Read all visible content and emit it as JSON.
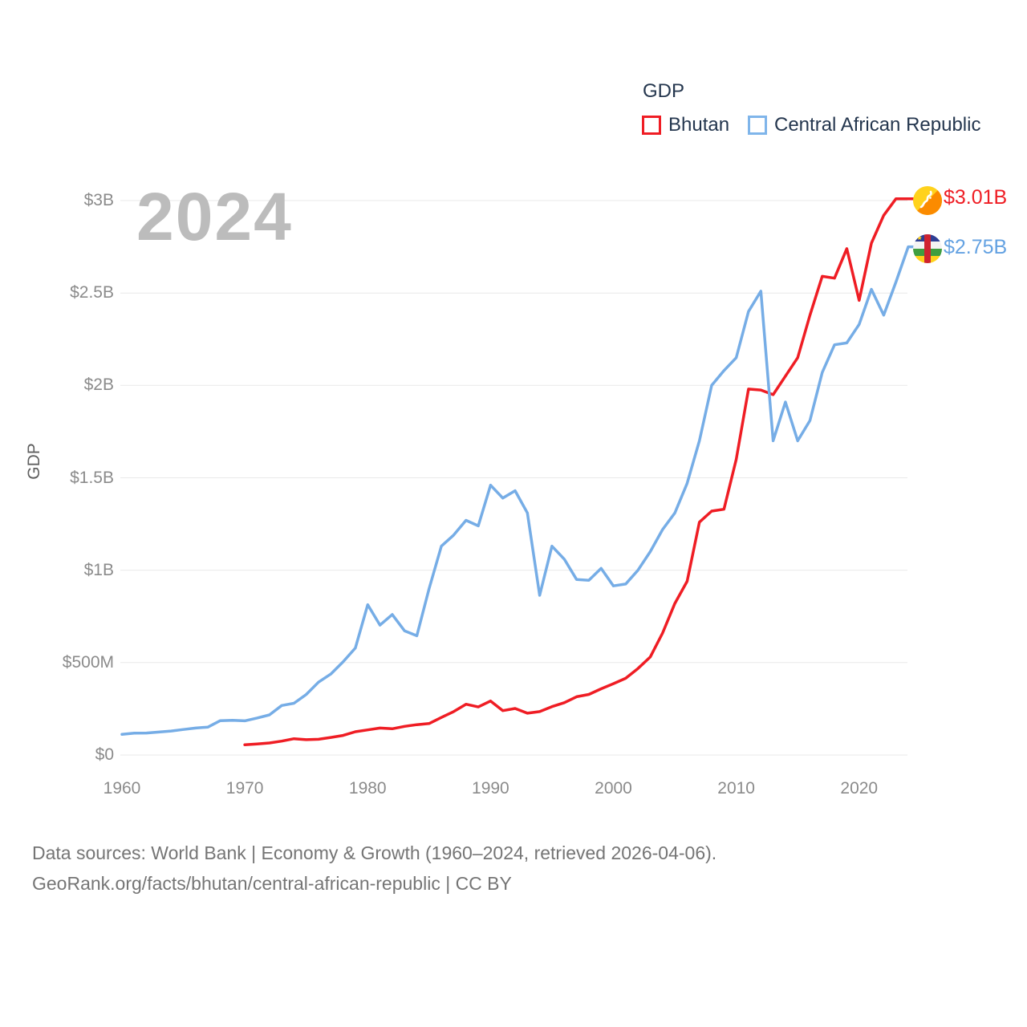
{
  "legend": {
    "title": "GDP",
    "series": [
      {
        "label": "Bhutan",
        "color": "#ef1d24"
      },
      {
        "label": "Central African Republic",
        "color": "#76ade6"
      }
    ]
  },
  "watermark": "2024",
  "y_axis": {
    "label": "GDP",
    "ticks": [
      "$0",
      "$500M",
      "$1B",
      "$1.5B",
      "$2B",
      "$2.5B",
      "$3B"
    ]
  },
  "x_axis": {
    "ticks": [
      "1960",
      "1970",
      "1980",
      "1990",
      "2000",
      "2010",
      "2020"
    ]
  },
  "end_labels": [
    {
      "series": "Bhutan",
      "value": "$3.01B"
    },
    {
      "series": "Central African Republic",
      "value": "$2.75B"
    }
  ],
  "footer": {
    "line1": "Data sources: World Bank | Economy & Growth (1960–2024, retrieved 2026-04-06).",
    "line2": "GeoRank.org/facts/bhutan/central-african-republic | CC BY"
  },
  "chart_data": {
    "type": "line",
    "title": "GDP",
    "ylabel": "GDP",
    "xlabel": "",
    "grid": "horizontal",
    "legend_position": "top-right",
    "x_range": [
      1960,
      2024
    ],
    "y_range_millions": [
      0,
      3100
    ],
    "y_ticks_millions": [
      0,
      500,
      1000,
      1500,
      2000,
      2500,
      3000
    ],
    "x_ticks": [
      1960,
      1970,
      1980,
      1990,
      2000,
      2010,
      2020
    ],
    "series": [
      {
        "name": "Bhutan",
        "color": "#ef1d24",
        "end_label": "$3.01B",
        "final_value": "$3.01B",
        "x_start": 1970,
        "x": [
          1970,
          1971,
          1972,
          1973,
          1974,
          1975,
          1976,
          1977,
          1978,
          1979,
          1980,
          1981,
          1982,
          1983,
          1984,
          1985,
          1986,
          1987,
          1988,
          1989,
          1990,
          1991,
          1992,
          1993,
          1994,
          1995,
          1996,
          1997,
          1998,
          1999,
          2000,
          2001,
          2002,
          2003,
          2004,
          2005,
          2006,
          2007,
          2008,
          2009,
          2010,
          2011,
          2012,
          2013,
          2014,
          2015,
          2016,
          2017,
          2018,
          2019,
          2020,
          2021,
          2022,
          2023,
          2024
        ],
        "values_millions": [
          55,
          60,
          65,
          75,
          88,
          83,
          85,
          95,
          106,
          126,
          136,
          146,
          142,
          155,
          164,
          170,
          203,
          235,
          275,
          260,
          292,
          240,
          252,
          226,
          235,
          262,
          283,
          315,
          328,
          358,
          386,
          415,
          468,
          530,
          660,
          820,
          940,
          1260,
          1320,
          1330,
          1600,
          1980,
          1975,
          1950,
          2050,
          2150,
          2380,
          2590,
          2580,
          2740,
          2460,
          2770,
          2920,
          3010,
          3010
        ]
      },
      {
        "name": "Central African Republic",
        "color": "#76ade6",
        "end_label": "$2.75B",
        "final_value": "$2.75B",
        "x_start": 1960,
        "x": [
          1960,
          1961,
          1962,
          1963,
          1964,
          1965,
          1966,
          1967,
          1968,
          1969,
          1970,
          1971,
          1972,
          1973,
          1974,
          1975,
          1976,
          1977,
          1978,
          1979,
          1980,
          1981,
          1982,
          1983,
          1984,
          1985,
          1986,
          1987,
          1988,
          1989,
          1990,
          1991,
          1992,
          1993,
          1994,
          1995,
          1996,
          1997,
          1998,
          1999,
          2000,
          2001,
          2002,
          2003,
          2004,
          2005,
          2006,
          2007,
          2008,
          2009,
          2010,
          2011,
          2012,
          2013,
          2014,
          2015,
          2016,
          2017,
          2018,
          2019,
          2020,
          2021,
          2022,
          2023,
          2024
        ],
        "values_millions": [
          112,
          118,
          119,
          124,
          130,
          138,
          146,
          151,
          186,
          188,
          185,
          200,
          217,
          268,
          280,
          328,
          394,
          438,
          504,
          579,
          813,
          703,
          760,
          672,
          645,
          900,
          1130,
          1190,
          1270,
          1240,
          1460,
          1390,
          1430,
          1310,
          864,
          1130,
          1060,
          950,
          945,
          1010,
          915,
          925,
          1000,
          1100,
          1220,
          1310,
          1470,
          1700,
          2000,
          2080,
          2150,
          2400,
          2510,
          1700,
          1910,
          1700,
          1810,
          2070,
          2220,
          2230,
          2330,
          2520,
          2380,
          2560,
          2750
        ]
      }
    ]
  }
}
